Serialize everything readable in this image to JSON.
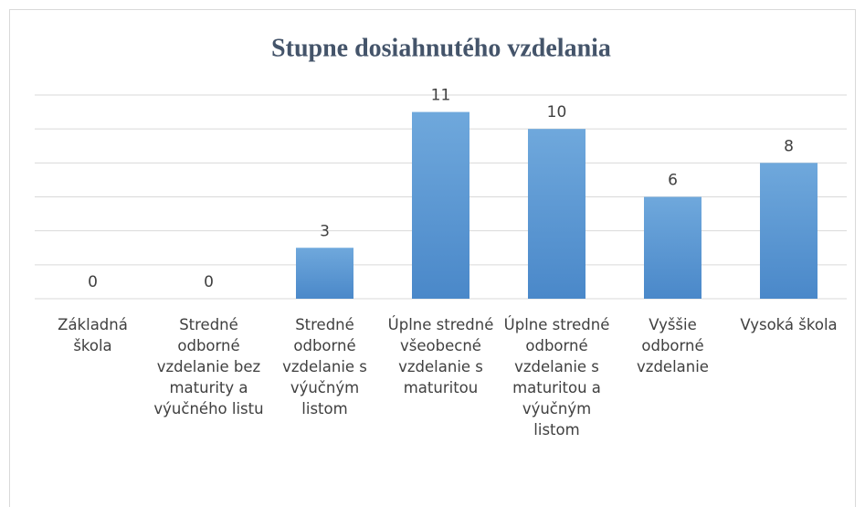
{
  "chart_data": {
    "type": "bar",
    "title": "Stupne dosiahnutého vzdelania",
    "categories": [
      "Základná škola",
      "Stredné odborné vzdelanie bez maturity a výučného listu",
      "Stredné odborné vzdelanie s výučným listom",
      "Úplne stredné všeobecné vzdelanie s maturitou",
      "Úplne stredné odborné vzdelanie s maturitou a výučným listom",
      "Vyššie odborné vzdelanie",
      "Vysoká škola"
    ],
    "values": [
      0,
      0,
      3,
      11,
      10,
      6,
      8
    ],
    "color": "#5b9bd5",
    "ylim": [
      0,
      12
    ],
    "yticks": [
      0,
      2,
      4,
      6,
      8,
      10,
      12
    ],
    "grid": true
  }
}
